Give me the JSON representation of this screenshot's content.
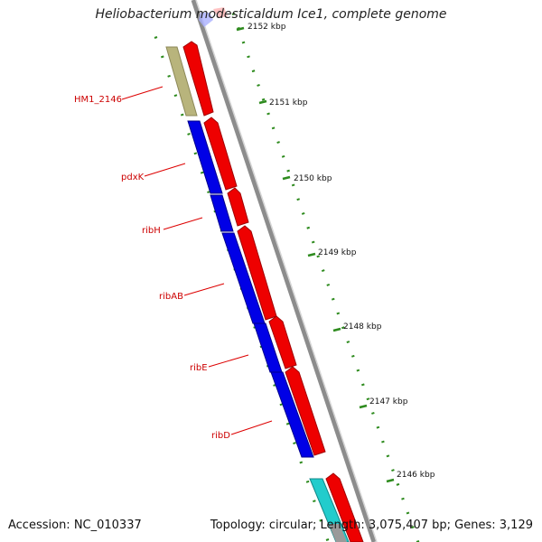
{
  "title": "Heliobacterium modesticaldum Ice1, complete genome",
  "accession": "Accession: NC_010337",
  "summary": "Topology: circular; Length: 3,075,407 bp; Genes: 3,129",
  "scale_labels": [
    "2152 kbp",
    "2151 kbp",
    "2150 kbp",
    "2149 kbp",
    "2148 kbp",
    "2147 kbp",
    "2146 kbp"
  ],
  "gene_labels": [
    "HM1_2146",
    "pdxK",
    "ribH",
    "ribAB",
    "ribE",
    "ribD"
  ],
  "colors": {
    "backbone": "#8a8a8a",
    "scale_ticks": "#2e8b1e",
    "cds_forward": "#ee0000",
    "gene_block": "#0000e6",
    "hypothetical_block": "#b7b37a",
    "rna_block": "#22cccc",
    "label": "#cc0000"
  }
}
